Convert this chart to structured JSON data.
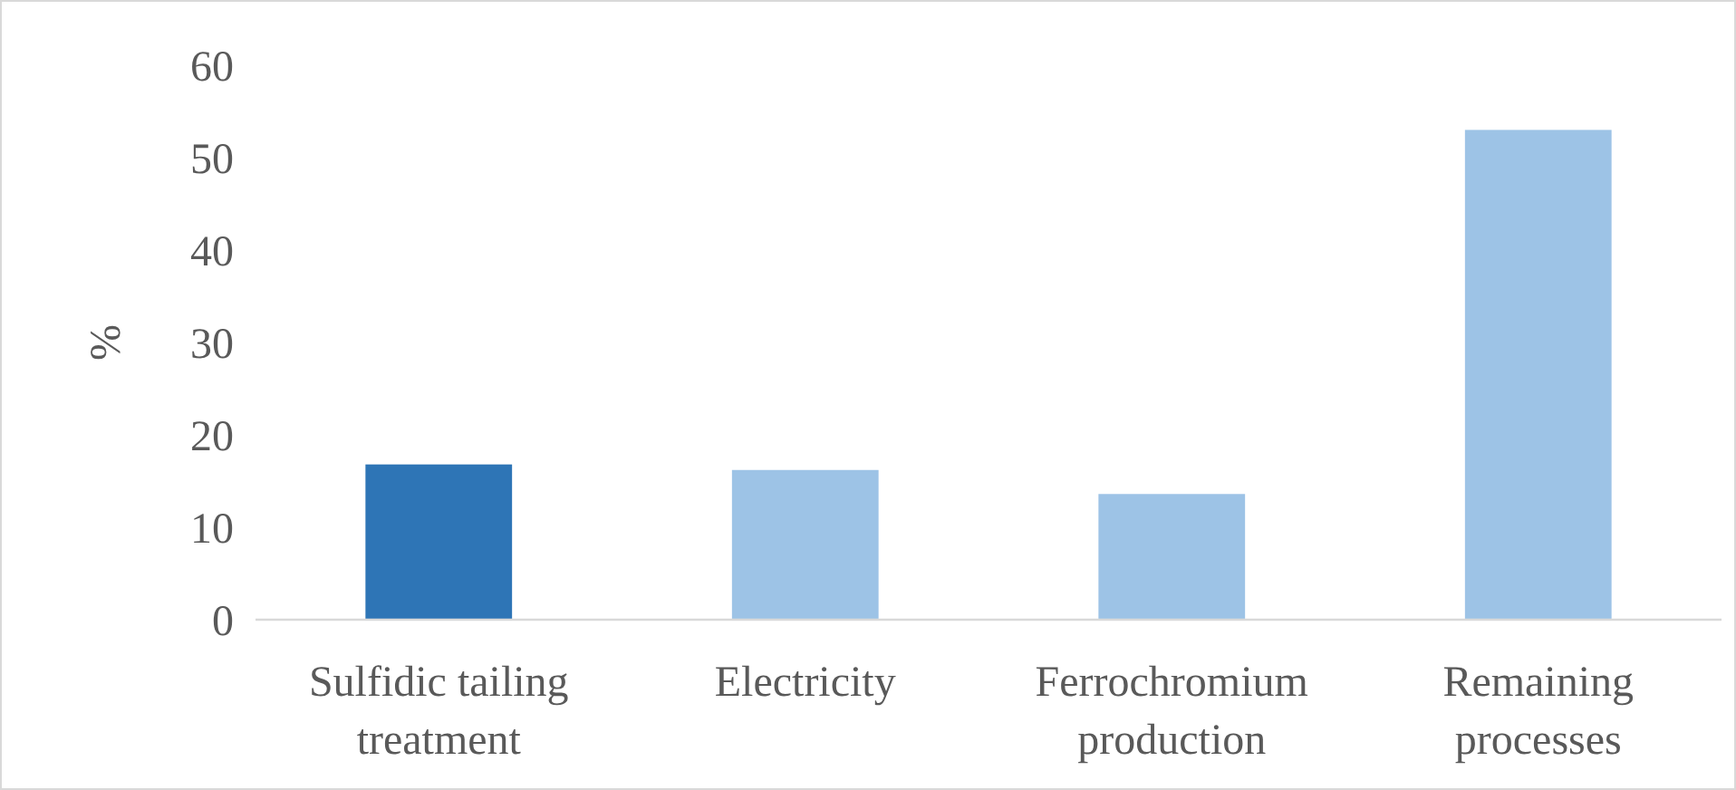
{
  "chart_data": {
    "type": "bar",
    "ylabel": "%",
    "categories": [
      "Sulfidic tailing treatment",
      "Electricity",
      "Ferrochromium production",
      "Remaining processes"
    ],
    "values": [
      16.8,
      16.2,
      13.6,
      53.0
    ],
    "colors": [
      "#2e75b6",
      "#9dc3e6",
      "#9dc3e6",
      "#9dc3e6"
    ],
    "ylim": [
      0,
      60
    ],
    "yticks": [
      0,
      10,
      20,
      30,
      40,
      50,
      60
    ],
    "grid": false
  }
}
